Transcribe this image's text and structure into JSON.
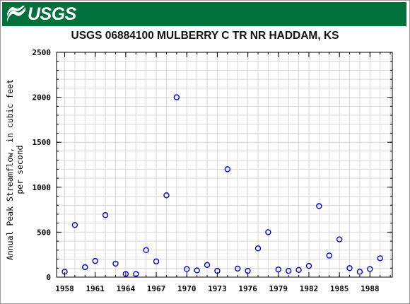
{
  "header": {
    "logo_text": "USGS",
    "logo_icon": "usgs-wave-logo",
    "brand_color": "#00703c"
  },
  "chart_data": {
    "type": "scatter",
    "title": "USGS 06884100 MULBERRY C TR NR HADDAM, KS",
    "xlabel": "",
    "ylabel_lines": [
      "Annual Peak Streamflow, in cubic feet",
      "per second"
    ],
    "xlim": [
      1957.2,
      1990.2
    ],
    "ylim": [
      0,
      2500
    ],
    "xticks": [
      1958,
      1961,
      1964,
      1967,
      1970,
      1973,
      1976,
      1979,
      1982,
      1985,
      1988
    ],
    "yticks": [
      0,
      500,
      1000,
      1500,
      2000,
      2500
    ],
    "marker": "open-circle",
    "marker_color": "#0000cc",
    "grid": true,
    "series": [
      {
        "points": [
          [
            1958,
            60
          ],
          [
            1959,
            580
          ],
          [
            1960,
            110
          ],
          [
            1961,
            180
          ],
          [
            1962,
            690
          ],
          [
            1963,
            150
          ],
          [
            1964,
            35
          ],
          [
            1965,
            35
          ],
          [
            1966,
            300
          ],
          [
            1967,
            175
          ],
          [
            1968,
            910
          ],
          [
            1969,
            2000
          ],
          [
            1970,
            90
          ],
          [
            1971,
            75
          ],
          [
            1972,
            135
          ],
          [
            1973,
            70
          ],
          [
            1974,
            1200
          ],
          [
            1975,
            95
          ],
          [
            1976,
            70
          ],
          [
            1977,
            320
          ],
          [
            1978,
            500
          ],
          [
            1979,
            85
          ],
          [
            1980,
            70
          ],
          [
            1981,
            80
          ],
          [
            1982,
            125
          ],
          [
            1983,
            790
          ],
          [
            1984,
            240
          ],
          [
            1985,
            420
          ],
          [
            1986,
            100
          ],
          [
            1987,
            60
          ],
          [
            1988,
            90
          ],
          [
            1989,
            210
          ]
        ]
      }
    ]
  }
}
